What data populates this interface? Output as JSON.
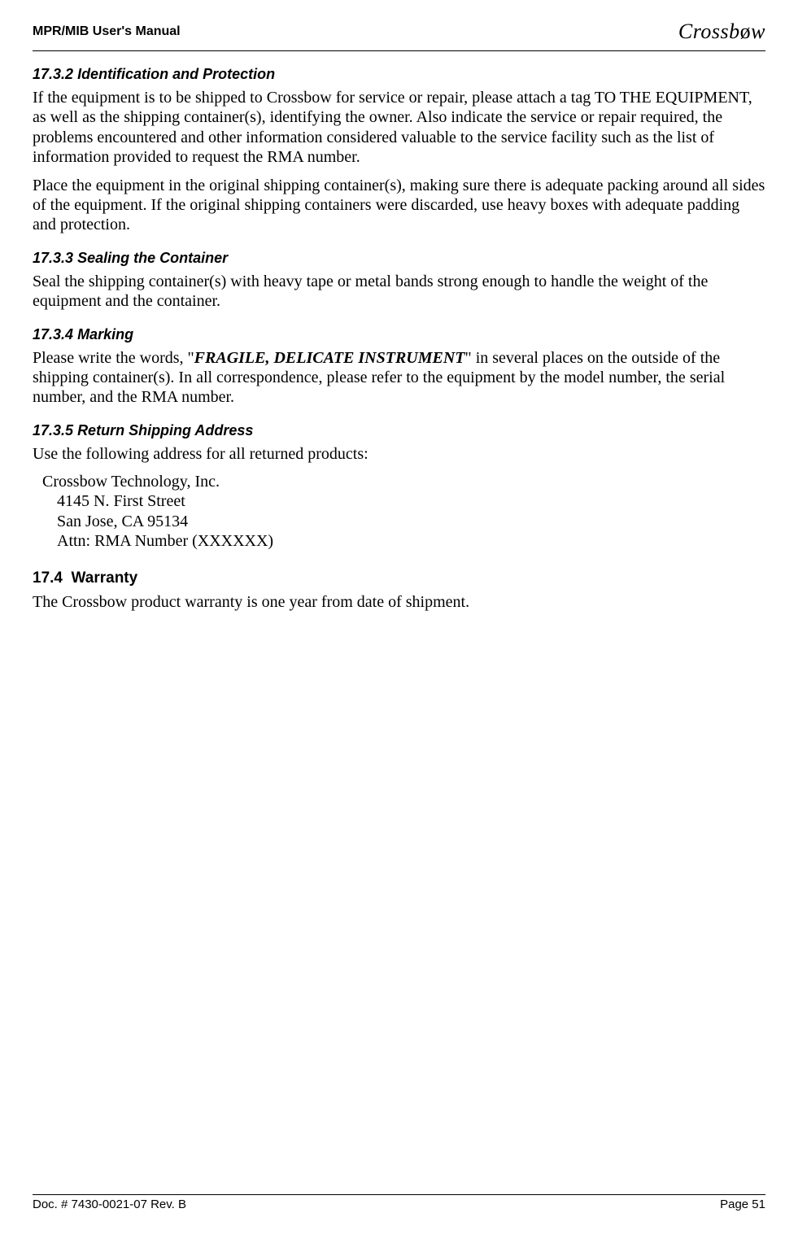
{
  "header": {
    "left": "MPR/MIB User's Manual",
    "logo": "Crossbow"
  },
  "sections": {
    "s1": {
      "num": "17.3.2",
      "title": "Identification and Protection",
      "p1": "If the equipment is to be shipped to Crossbow for service or repair, please attach a tag TO THE EQUIPMENT, as well as the shipping container(s), identifying the owner.  Also indicate the service or repair required, the problems encountered and other information considered valuable to the service facility such as the list of information provided to request the RMA number.",
      "p2": "Place the equipment in the original shipping container(s), making sure there is adequate packing around all sides of the equipment.  If the original shipping containers were discarded, use heavy boxes with adequate padding and protection."
    },
    "s2": {
      "num": "17.3.3",
      "title": "Sealing the Container",
      "p1": "Seal the shipping container(s) with heavy tape or metal bands strong enough to handle the weight of the equipment and the container."
    },
    "s3": {
      "num": "17.3.4",
      "title": "Marking",
      "p1a": "Please write the words, \"",
      "p1b": "FRAGILE, DELICATE INSTRUMENT",
      "p1c": "\" in several places on the outside of the shipping container(s).  In all correspondence, please refer to the equipment by the model number, the serial number, and the RMA number."
    },
    "s4": {
      "num": "17.3.5",
      "title": "Return Shipping Address",
      "p1": "Use the following address for all returned products:",
      "addr1": "Crossbow Technology, Inc.",
      "addr2": "4145 N. First Street",
      "addr3": "San Jose, CA 95134",
      "addr4": "Attn: RMA Number (XXXXXX)"
    },
    "s5": {
      "num": "17.4",
      "title": "Warranty",
      "p1": "The Crossbow product warranty is one year from date of shipment."
    }
  },
  "footer": {
    "left": "Doc. # 7430-0021-07 Rev. B",
    "right": "Page 51"
  }
}
